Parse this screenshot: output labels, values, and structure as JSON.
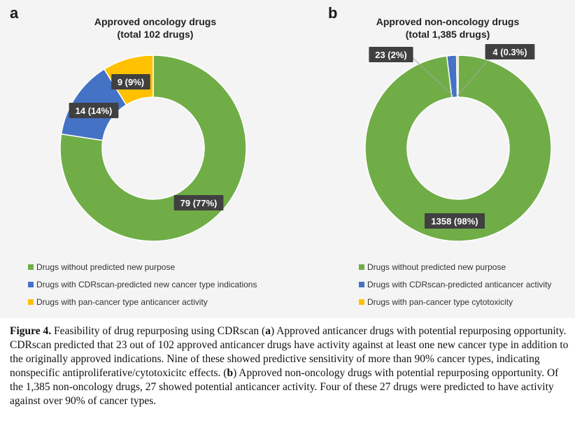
{
  "chart_data": [
    {
      "type": "pie",
      "panel_letter": "a",
      "title_line1": "Approved oncology drugs",
      "title_line2": "(total 102 drugs)",
      "categories": [
        "Drugs without predicted new purpose",
        "Drugs with CDRscan-predicted new cancer type indications",
        "Drugs with pan-cancer type anticancer activity"
      ],
      "values": [
        79,
        14,
        9
      ],
      "data_labels": [
        "79 (77%)",
        "14 (14%)",
        "9 (9%)"
      ],
      "colors": [
        "#70ad47",
        "#4472c4",
        "#ffc000"
      ],
      "legend_position": "bottom-left"
    },
    {
      "type": "pie",
      "panel_letter": "b",
      "title_line1": "Approved non-oncology drugs",
      "title_line2": "(total 1,385 drugs)",
      "categories": [
        "Drugs without predicted new purpose",
        "Drugs with CDRscan-predicted anticancer activity",
        "Drugs with pan-cancer type cytotoxicity"
      ],
      "values": [
        1358,
        23,
        4
      ],
      "data_labels": [
        "1358 (98%)",
        "23 (2%)",
        "4 (0.3%)"
      ],
      "colors": [
        "#70ad47",
        "#4472c4",
        "#ffc000"
      ],
      "legend_position": "bottom-left"
    }
  ],
  "caption": {
    "label": "Figure 4.",
    "t1": " Feasibility of drug repurposing using CDRscan (",
    "a": "a",
    "t2": ") Approved anticancer drugs with potential repurposing opportunity. CDRscan predicted that 23 out of 102 approved anticancer drugs have activity against at least one new cancer type in addition to the originally approved indications. Nine of these showed predictive sensitivity of more than 90% cancer types, indicating nonspecific antiproliferative/cytotoxicitc effects. (",
    "b": "b",
    "t3": ") Approved non-oncology drugs with potential repurposing opportunity. Of the 1,385 non-oncology drugs, 27 showed potential anticancer activity. Four of these 27 drugs were predicted to have activity against over 90% of cancer types."
  }
}
